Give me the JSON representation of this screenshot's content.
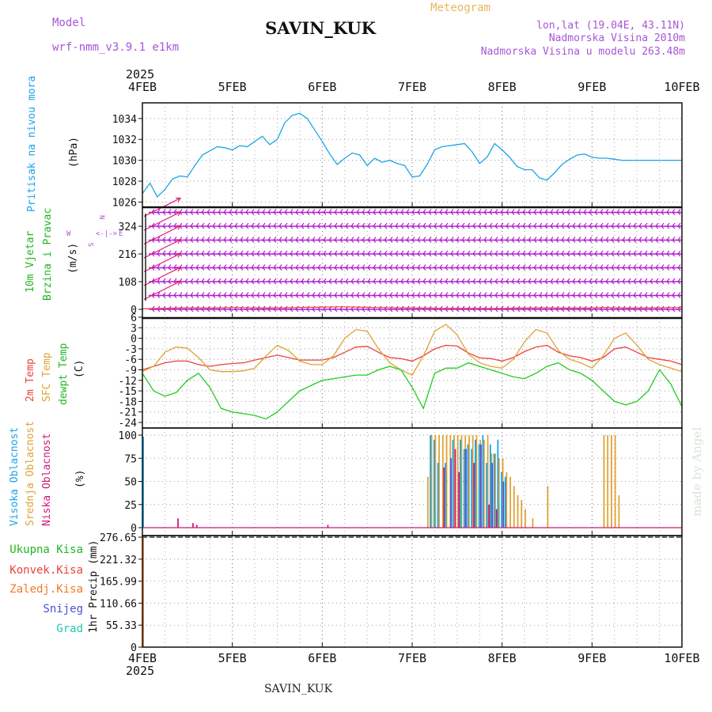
{
  "header": {
    "model_label": "Model",
    "model_name": "wrf-nmm_v3.9.1 e1km",
    "station": "SAVIN_KUK",
    "chart_title": "Meteogram",
    "coords": "lon,lat (19.04E, 43.11N)",
    "altitude": "Nadmorska Visina 2010m",
    "model_altitude": "Nadmorska Visina u modelu 263.48m",
    "footer_station": "SAVIN_KUK",
    "credit": "made by Angel"
  },
  "colors": {
    "pressure": "#1ca3e8",
    "wind_label": "#22b522",
    "wind_barb": "#b21ccf",
    "wind_arrow": "#e01878",
    "wind_speed": "#e8433a",
    "temp2m": "#e8433a",
    "sfc_temp": "#e0a235",
    "dewpt": "#22cc22",
    "high_cloud": "#1ca3e8",
    "mid_cloud": "#e0a235",
    "low_cloud": "#d01878",
    "cloud_blue": "#4a4fd6",
    "cloud_green": "#3cb8a8",
    "precip_total": "#22b522",
    "precip_conv": "#e8433a",
    "precip_frz": "#f07a2a",
    "precip_snow": "#4a4fd6",
    "precip_hail": "#22c8b0",
    "grid": "#888888",
    "model": "#a855d8",
    "meteogram": "#e8b85a"
  },
  "time_axis": {
    "year_top": "2025",
    "year_bottom": "2025",
    "days": [
      "4FEB",
      "5FEB",
      "6FEB",
      "7FEB",
      "8FEB",
      "9FEB",
      "10FEB"
    ]
  },
  "chart_data": [
    {
      "type": "line",
      "panel": "pressure",
      "ylabel": "(hPa)",
      "side_labels": [
        "Pritisak na nivou mora"
      ],
      "ylim": [
        1025.5,
        1035.5
      ],
      "yticks": [
        "1026",
        "1028",
        "1030",
        "1032",
        "1034"
      ],
      "x_unit": "hours since 4FEB 00",
      "series": [
        {
          "x": [
            0,
            2,
            4,
            6,
            8,
            10,
            12,
            14,
            16,
            18,
            20,
            22,
            24,
            26,
            28,
            30,
            32,
            34,
            36,
            38,
            40,
            42,
            44,
            46,
            48,
            50,
            52,
            54,
            56,
            58,
            60,
            62,
            64,
            66,
            68,
            70,
            72,
            74,
            76,
            78,
            80,
            82,
            84,
            86,
            88,
            90,
            92,
            94,
            96,
            98,
            100,
            102,
            104,
            106,
            108,
            110,
            112,
            114,
            116,
            118,
            120,
            122,
            124,
            126,
            128,
            130,
            132,
            134,
            136,
            138,
            140,
            142,
            144
          ],
          "values": [
            1026.8,
            1027.8,
            1026.5,
            1027.2,
            1028.2,
            1028.5,
            1028.4,
            1029.5,
            1030.5,
            1030.9,
            1031.3,
            1031.2,
            1031.0,
            1031.4,
            1031.3,
            1031.8,
            1032.3,
            1031.5,
            1032.0,
            1033.6,
            1034.3,
            1034.5,
            1034.0,
            1032.9,
            1031.8,
            1030.6,
            1029.6,
            1030.2,
            1030.7,
            1030.5,
            1029.5,
            1030.2,
            1029.8,
            1030.0,
            1029.7,
            1029.5,
            1028.4,
            1028.5,
            1029.6,
            1031.0,
            1031.3,
            1031.4,
            1031.5,
            1031.6,
            1030.8,
            1029.7,
            1030.3,
            1031.6,
            1031.0,
            1030.3,
            1029.4,
            1029.1,
            1029.1,
            1028.3,
            1028.1,
            1028.8,
            1029.6,
            1030.1,
            1030.5,
            1030.6,
            1030.3,
            1030.2,
            1030.2,
            1030.1,
            1030.0,
            1030.0,
            1030.0,
            1030.0,
            1030.0,
            1030.0,
            1030.0,
            1030.0,
            1030.0
          ]
        }
      ]
    },
    {
      "type": "line",
      "panel": "wind",
      "ylabel": "(m/s)",
      "side_labels": [
        "10m Vjetar",
        "Brzina i Pravac"
      ],
      "compass": [
        "N",
        "W",
        "E",
        "S"
      ],
      "ylim": [
        0,
        378
      ],
      "yticks": [
        "0",
        "108",
        "216",
        "324"
      ],
      "barb_levels": [
        0,
        108,
        216,
        324
      ],
      "series": [
        {
          "name": "wind speed",
          "values": [
            2,
            3,
            4,
            5,
            6,
            6,
            5,
            6,
            7,
            7,
            6,
            5,
            6,
            6,
            7,
            8,
            8,
            9,
            10,
            9,
            8,
            7,
            7,
            6,
            6,
            5,
            5,
            4,
            4,
            4,
            4,
            4,
            3,
            4,
            5,
            5,
            6,
            6,
            5,
            5,
            5,
            6,
            7,
            6,
            5,
            5,
            6,
            6,
            7,
            7
          ]
        }
      ]
    },
    {
      "type": "line",
      "panel": "temperature",
      "ylabel": "(C)",
      "side_labels": [
        "2m Temp",
        "SFC Temp",
        "dewpt Temp"
      ],
      "ylim": [
        -25,
        6
      ],
      "yticks": [
        "6",
        "3",
        "0",
        "-3",
        "-6",
        "-9",
        "-12",
        "-15",
        "-18",
        "-21",
        "-24"
      ],
      "x_unit": "hours since 4FEB 00",
      "x": [
        0,
        3,
        6,
        9,
        12,
        15,
        18,
        21,
        24,
        27,
        30,
        33,
        36,
        39,
        42,
        45,
        48,
        51,
        54,
        57,
        60,
        63,
        66,
        69,
        72,
        75,
        78,
        81,
        84,
        87,
        90,
        93,
        96,
        99,
        102,
        105,
        108,
        111,
        114,
        117,
        120,
        123,
        126,
        129,
        132,
        135,
        138,
        141,
        144
      ],
      "series": [
        {
          "name": "2m Temp",
          "values": [
            -9,
            -8,
            -7,
            -6.5,
            -6.5,
            -7.5,
            -8,
            -7.5,
            -7.2,
            -7.0,
            -6.2,
            -5.5,
            -4.8,
            -5.5,
            -6.2,
            -6.2,
            -6.2,
            -5.5,
            -4.0,
            -2.5,
            -2.3,
            -4.0,
            -5.5,
            -5.8,
            -6.5,
            -5.0,
            -3.0,
            -2.0,
            -2.2,
            -4.2,
            -5.6,
            -5.8,
            -6.5,
            -5.5,
            -3.8,
            -2.5,
            -2.0,
            -4.0,
            -5.0,
            -5.5,
            -6.5,
            -5.5,
            -3.0,
            -2.5,
            -4.0,
            -5.5,
            -6.0,
            -6.5,
            -7.5
          ]
        },
        {
          "name": "SFC Temp",
          "values": [
            -9.5,
            -8,
            -4,
            -2.5,
            -2.8,
            -5.5,
            -9,
            -9.5,
            -9.5,
            -9.3,
            -8.5,
            -5.0,
            -2.0,
            -3.5,
            -6.5,
            -7.5,
            -7.5,
            -5.0,
            0.0,
            2.5,
            2.0,
            -3.0,
            -7.0,
            -9.0,
            -10.5,
            -5.0,
            2.0,
            4.0,
            1.0,
            -4.5,
            -7.0,
            -8.0,
            -8.5,
            -6.0,
            -1.0,
            2.5,
            1.5,
            -3.5,
            -6.0,
            -7.0,
            -8.5,
            -5.0,
            0.0,
            1.5,
            -2.0,
            -6.0,
            -7.5,
            -8.5,
            -9.5
          ]
        },
        {
          "name": "dewpt Temp",
          "values": [
            -10,
            -15,
            -16.5,
            -15.5,
            -12,
            -10,
            -14,
            -20,
            -21,
            -21.5,
            -22,
            -23,
            -21,
            -18,
            -15,
            -13.5,
            -12,
            -11.5,
            -11,
            -10.5,
            -10.5,
            -9,
            -8,
            -9,
            -14,
            -20,
            -10,
            -8.5,
            -8.5,
            -7,
            -8,
            -9,
            -10,
            -11,
            -11.5,
            -10,
            -8,
            -7,
            -9,
            -10,
            -12,
            -15,
            -18,
            -19,
            -18,
            -15,
            -9,
            -13,
            -19.5
          ]
        }
      ]
    },
    {
      "type": "bar",
      "panel": "clouds",
      "ylabel": "(%)",
      "side_labels": [
        "Visoka Oblacnost",
        "Srednja Oblacnost",
        "Niska Oblacnost"
      ],
      "ylim": [
        0,
        100
      ],
      "yticks": [
        "0",
        "25",
        "50",
        "75",
        "100"
      ],
      "x_unit": "hours since 4FEB 00",
      "series": [
        {
          "name": "Srednja Oblacnost",
          "x": [
            76,
            77,
            78,
            79,
            80,
            81,
            82,
            83,
            84,
            85,
            86,
            87,
            88,
            89,
            90,
            91,
            92,
            93,
            94,
            95,
            96,
            97,
            98,
            99,
            100,
            101,
            102,
            104,
            108,
            123,
            124,
            125,
            126,
            127
          ],
          "values": [
            55,
            100,
            100,
            100,
            100,
            100,
            100,
            100,
            100,
            100,
            100,
            100,
            100,
            100,
            95,
            95,
            100,
            80,
            80,
            75,
            75,
            60,
            55,
            45,
            35,
            30,
            20,
            10,
            45,
            100,
            100,
            100,
            100,
            35
          ]
        },
        {
          "name": "Visoka Oblacnost",
          "x": [
            77,
            78,
            79,
            81,
            83,
            85,
            86,
            87,
            88,
            89,
            90,
            91,
            92,
            93,
            94,
            95,
            96,
            97
          ],
          "values": [
            100,
            95,
            70,
            70,
            95,
            95,
            85,
            90,
            85,
            95,
            90,
            100,
            70,
            90,
            80,
            95,
            60,
            55
          ]
        },
        {
          "name": "Niska Oblacnost",
          "x": [
            9,
            13,
            14,
            49,
            80,
            83,
            84,
            88,
            92,
            94
          ],
          "values": [
            10,
            5,
            3,
            3,
            65,
            85,
            60,
            70,
            25,
            20
          ]
        },
        {
          "name": "blue",
          "x": [
            82,
            86,
            90,
            93,
            96
          ],
          "values": [
            75,
            85,
            90,
            70,
            50
          ]
        },
        {
          "name": "green",
          "x": [
            78,
            81,
            85,
            89,
            95
          ],
          "values": [
            20,
            60,
            55,
            40,
            25
          ]
        }
      ]
    },
    {
      "type": "bar",
      "panel": "precipitation",
      "ylabel": "1hr Precip (mm)",
      "side_labels": [
        "Ukupna Kisa",
        "Konvek.Kisa",
        "Zaledj.Kisa",
        "Snijeg",
        "Grad"
      ],
      "ylim": [
        0,
        276.65
      ],
      "yticks": [
        "0",
        "55.33",
        "110.66",
        "165.99",
        "221.32",
        "276.65"
      ],
      "series": []
    }
  ]
}
